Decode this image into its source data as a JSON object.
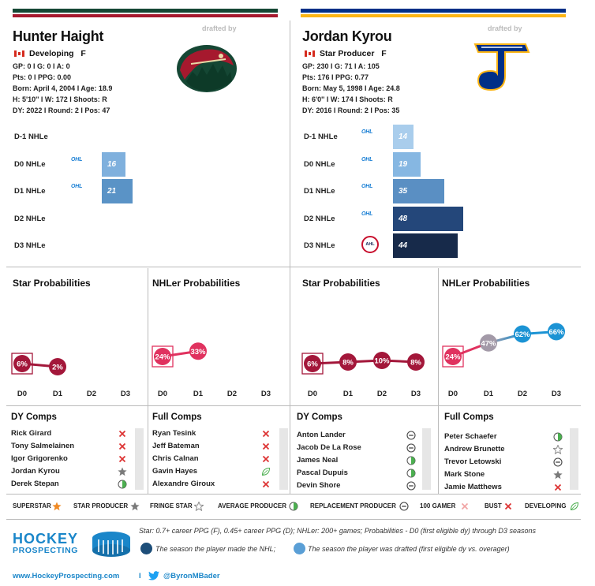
{
  "left": {
    "drafted_by": "drafted by",
    "name": "Hunter Haight",
    "status": "Developing",
    "position": "F",
    "stats": [
      "GP: 0 I G: 0 I A: 0",
      "Pts: 0 I PPG: 0.00",
      "Born: April 4, 2004 I Age: 18.9",
      "H: 5'10'' I W: 172 I Shoots: R",
      "DY: 2022 I Round: 2 I Pos: 47"
    ],
    "accent_colors": [
      "#154734",
      "#a6192e"
    ],
    "seasons": [
      {
        "label": "D-1 NHLe",
        "league": "",
        "value": null
      },
      {
        "label": "D0 NHLe",
        "league": "OHL",
        "value": 16,
        "color": "#7fb0dd"
      },
      {
        "label": "D1 NHLe",
        "league": "OHL",
        "value": 21,
        "color": "#5a93c6"
      },
      {
        "label": "D2 NHLe",
        "league": "",
        "value": null
      },
      {
        "label": "D3 NHLe",
        "league": "",
        "value": null
      }
    ],
    "star_title": "Star Probabilities",
    "star_probs": [
      {
        "x": "D0",
        "v": "6%",
        "y": 6
      },
      {
        "x": "D1",
        "v": "2%",
        "y": 2
      }
    ],
    "nhler_title": "NHLer Probabilities",
    "nhler_probs": [
      {
        "x": "D0",
        "v": "24%",
        "y": 24
      },
      {
        "x": "D1",
        "v": "33%",
        "y": 33
      }
    ],
    "dy_comps_title": "DY Comps",
    "dy_comps": [
      {
        "name": "Rick Girard",
        "icon": "x"
      },
      {
        "name": "Tony Salmelainen",
        "icon": "x"
      },
      {
        "name": "Igor Grigorenko",
        "icon": "x"
      },
      {
        "name": "Jordan Kyrou",
        "icon": "star"
      },
      {
        "name": "Derek Stepan",
        "icon": "avg"
      }
    ],
    "full_comps_title": "Full Comps",
    "full_comps": [
      {
        "name": "Ryan Tesink",
        "icon": "x"
      },
      {
        "name": "Jeff Bateman",
        "icon": "x"
      },
      {
        "name": "Chris Calnan",
        "icon": "x"
      },
      {
        "name": "Gavin Hayes",
        "icon": "leaf"
      },
      {
        "name": "Alexandre Giroux",
        "icon": "x"
      }
    ]
  },
  "right": {
    "drafted_by": "drafted by",
    "name": "Jordan Kyrou",
    "status": "Star Producer",
    "position": "F",
    "stats": [
      "GP: 230 I G: 71 I A: 105",
      "Pts: 176 I PPG: 0.77",
      "Born: May 5, 1998 I Age: 24.8",
      "H: 6'0'' I W: 174 I Shoots: R",
      "DY: 2016 I Round: 2 I Pos: 35"
    ],
    "accent_colors": [
      "#002f87",
      "#fcb514"
    ],
    "seasons": [
      {
        "label": "D-1 NHLe",
        "league": "OHL",
        "value": 14,
        "color": "#a9cdec"
      },
      {
        "label": "D0 NHLe",
        "league": "OHL",
        "value": 19,
        "color": "#86b7e2"
      },
      {
        "label": "D1 NHLe",
        "league": "OHL",
        "value": 35,
        "color": "#5a8fc3"
      },
      {
        "label": "D2 NHLe",
        "league": "OHL",
        "value": 48,
        "color": "#24477a"
      },
      {
        "label": "D3 NHLe",
        "league": "AHL",
        "value": 44,
        "color": "#172a4a"
      }
    ],
    "star_title": "Star Probabilities",
    "star_probs": [
      {
        "x": "D0",
        "v": "6%",
        "y": 6
      },
      {
        "x": "D1",
        "v": "8%",
        "y": 8
      },
      {
        "x": "D2",
        "v": "10%",
        "y": 10
      },
      {
        "x": "D3",
        "v": "8%",
        "y": 8
      }
    ],
    "nhler_title": "NHLer Probabilities",
    "nhler_probs": [
      {
        "x": "D0",
        "v": "24%",
        "y": 24
      },
      {
        "x": "D1",
        "v": "47%",
        "y": 47
      },
      {
        "x": "D2",
        "v": "62%",
        "y": 62
      },
      {
        "x": "D3",
        "v": "66%",
        "y": 66
      }
    ],
    "dy_comps_title": "DY Comps",
    "dy_comps": [
      {
        "name": "Anton Lander",
        "icon": "repl"
      },
      {
        "name": "Jacob De La Rose",
        "icon": "repl"
      },
      {
        "name": "James Neal",
        "icon": "avg"
      },
      {
        "name": "Pascal Dupuis",
        "icon": "avg"
      },
      {
        "name": "Devin Shore",
        "icon": "repl"
      }
    ],
    "full_comps_title": "Full Comps",
    "full_comps": [
      {
        "name": "Peter Schaefer",
        "icon": "avg"
      },
      {
        "name": "Andrew Brunette",
        "icon": "fringe"
      },
      {
        "name": "Trevor Letowski",
        "icon": "repl"
      },
      {
        "name": "Mark Stone",
        "icon": "star"
      },
      {
        "name": "Jamie Matthews",
        "icon": "x"
      }
    ]
  },
  "x_axis": [
    "D0",
    "D1",
    "D2",
    "D3"
  ],
  "legend": [
    {
      "label": "SUPERSTAR",
      "icon": "superstar"
    },
    {
      "label": "STAR PRODUCER",
      "icon": "star"
    },
    {
      "label": "FRINGE STAR",
      "icon": "fringe"
    },
    {
      "label": "AVERAGE PRODUCER",
      "icon": "avg"
    },
    {
      "label": "REPLACEMENT PRODUCER",
      "icon": "repl"
    },
    {
      "label": "100 GAMER",
      "icon": "x-light"
    },
    {
      "label": "BUST",
      "icon": "x"
    },
    {
      "label": "DEVELOPING",
      "icon": "leaf"
    }
  ],
  "footer": {
    "brand_line1": "HOCKEY",
    "brand_line2": "PROSPECTING",
    "definition": "Star: 0.7+ career PPG (F), 0.45+ career PPG (D); NHLer: 200+ games; Probabilities - D0 (first eligible dy) through D3 seasons",
    "made_nhl": "The season the player made the NHL;",
    "drafted_note": "The season the player was drafted (first eligible dy vs. overager)",
    "website": "www.HockeyProspecting.com",
    "separator": "I",
    "twitter": "@ByronMBader"
  },
  "colors": {
    "star_line": "#a3173a",
    "nhler_red": "#e0325f",
    "nhler_grey": "#a39aa8",
    "nhler_blue": "#1b93d4"
  }
}
